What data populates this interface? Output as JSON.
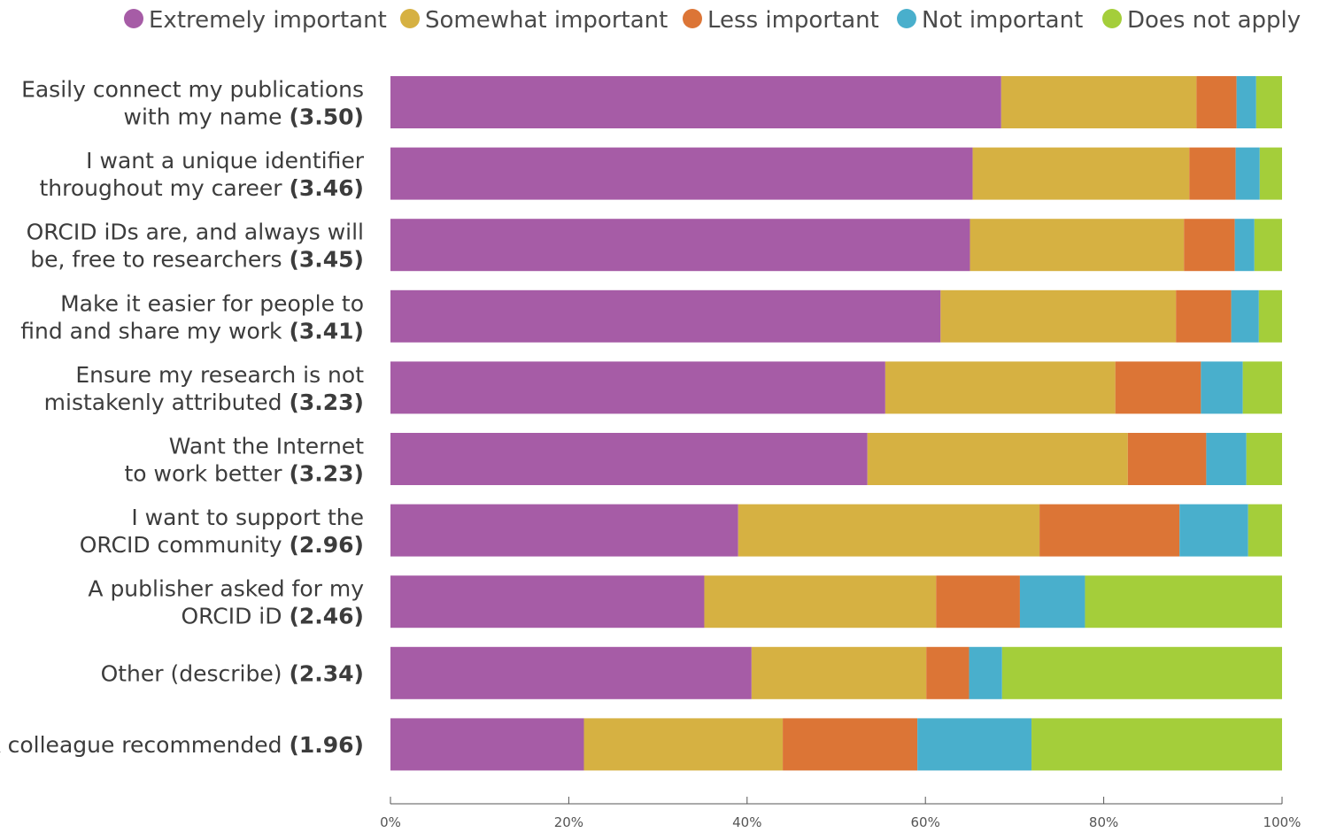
{
  "chart_data": {
    "type": "bar",
    "orientation": "horizontal",
    "stacked": true,
    "legend_position": "top",
    "grid": false,
    "xlim": [
      0,
      100
    ],
    "x_ticks": [
      "0%",
      "20%",
      "40%",
      "60%",
      "80%",
      "100%"
    ],
    "categories": [
      {
        "lines": [
          "Easily connect my publications",
          "with my name"
        ],
        "score": "(3.50)"
      },
      {
        "lines": [
          "I want a unique identifier",
          "throughout my career"
        ],
        "score": "(3.46)"
      },
      {
        "lines": [
          "ORCID iDs are, and always will",
          "be, free to researchers"
        ],
        "score": "(3.45)"
      },
      {
        "lines": [
          "Make it easier for people to",
          "find and share my work"
        ],
        "score": "(3.41)"
      },
      {
        "lines": [
          "Ensure my research is not",
          "mistakenly attributed"
        ],
        "score": "(3.23)"
      },
      {
        "lines": [
          "Want the Internet",
          "to work better"
        ],
        "score": "(3.23)"
      },
      {
        "lines": [
          "I want to support the",
          "ORCID community"
        ],
        "score": "(2.96)"
      },
      {
        "lines": [
          "A publisher asked for my",
          "ORCID iD"
        ],
        "score": "(2.46)"
      },
      {
        "lines": [
          "Other (describe)"
        ],
        "score": "(2.34)"
      },
      {
        "lines": [
          "A colleague recommended"
        ],
        "score": "(1.96)"
      }
    ],
    "series": [
      {
        "name": "Extremely important",
        "color": "#a65ca6",
        "values": [
          68.5,
          65.3,
          65.0,
          61.7,
          55.5,
          53.5,
          39.0,
          35.2,
          40.5,
          21.7
        ]
      },
      {
        "name": "Somewhat important",
        "color": "#d6b142",
        "values": [
          21.9,
          24.3,
          24.0,
          26.4,
          25.8,
          29.2,
          33.8,
          26.0,
          19.6,
          22.3
        ]
      },
      {
        "name": "Less important",
        "color": "#dc7536",
        "values": [
          4.5,
          5.2,
          5.7,
          6.2,
          9.6,
          8.8,
          15.7,
          9.4,
          4.8,
          15.1
        ]
      },
      {
        "name": "Not important",
        "color": "#49afcc",
        "values": [
          2.2,
          2.7,
          2.2,
          3.1,
          4.7,
          4.5,
          7.7,
          7.3,
          3.7,
          12.8
        ]
      },
      {
        "name": "Does not apply",
        "color": "#a4ce3a",
        "values": [
          2.9,
          2.5,
          3.1,
          2.6,
          4.4,
          4.0,
          3.8,
          22.1,
          31.4,
          28.1
        ]
      }
    ]
  }
}
